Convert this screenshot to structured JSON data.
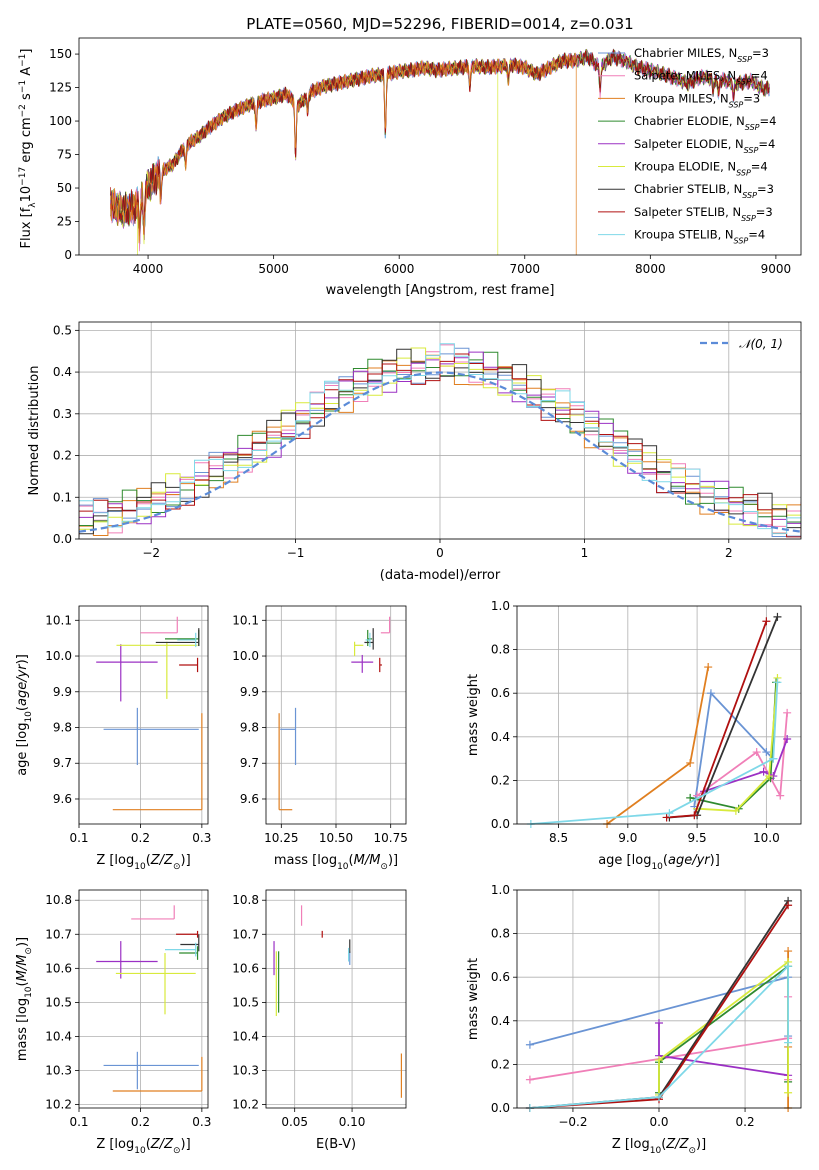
{
  "figure_title": "PLATE=0560, MJD=52296, FIBERID=0014, z=0.031",
  "series_colors": [
    "#6a94d4",
    "#f07fb8",
    "#e07f20",
    "#2f8a2f",
    "#9b30c4",
    "#d8ea3c",
    "#333333",
    "#b01010",
    "#7fd8e8"
  ],
  "chart_data": [
    {
      "id": "spectrum",
      "type": "line",
      "title": "PLATE=0560, MJD=52296, FIBERID=0014, z=0.031",
      "xlabel": "wavelength [Angstrom, rest frame]",
      "ylabel": "Flux [f",
      "xlim": [
        3450,
        9200
      ],
      "ylim": [
        0,
        162
      ],
      "xticks": [
        4000,
        5000,
        6000,
        7000,
        8000,
        9000
      ],
      "yticks": [
        0,
        25,
        50,
        75,
        100,
        125,
        150
      ],
      "legend_position": "right",
      "legend": [
        {
          "name": "Chabrier MILES, N",
          "nssp": "3"
        },
        {
          "name": "Salpeter MILES, N",
          "nssp": "4"
        },
        {
          "name": "Kroupa MILES, N",
          "nssp": "3"
        },
        {
          "name": "Chabrier ELODIE, N",
          "nssp": "4"
        },
        {
          "name": "Salpeter ELODIE, N",
          "nssp": "4"
        },
        {
          "name": "Kroupa ELODIE, N",
          "nssp": "4"
        },
        {
          "name": "Chabrier STELIB, N",
          "nssp": "3"
        },
        {
          "name": "Salpeter STELIB, N",
          "nssp": "3"
        },
        {
          "name": "Kroupa STELIB, N",
          "nssp": "4"
        }
      ],
      "continuum": [
        [
          3700,
          38
        ],
        [
          3800,
          33
        ],
        [
          3900,
          36
        ],
        [
          4000,
          52
        ],
        [
          4100,
          62
        ],
        [
          4200,
          68
        ],
        [
          4300,
          82
        ],
        [
          4400,
          88
        ],
        [
          4500,
          96
        ],
        [
          4600,
          103
        ],
        [
          4700,
          108
        ],
        [
          4800,
          112
        ],
        [
          4900,
          115
        ],
        [
          5000,
          117
        ],
        [
          5100,
          120
        ],
        [
          5200,
          112
        ],
        [
          5300,
          122
        ],
        [
          5400,
          126
        ],
        [
          5500,
          128
        ],
        [
          5600,
          130
        ],
        [
          5700,
          132
        ],
        [
          5800,
          134
        ],
        [
          5900,
          135
        ],
        [
          6000,
          137
        ],
        [
          6100,
          138
        ],
        [
          6200,
          140
        ],
        [
          6300,
          138
        ],
        [
          6400,
          139
        ],
        [
          6500,
          140
        ],
        [
          6600,
          141
        ],
        [
          6700,
          140
        ],
        [
          6800,
          141
        ],
        [
          6900,
          142
        ],
        [
          7000,
          140
        ],
        [
          7100,
          135
        ],
        [
          7200,
          140
        ],
        [
          7300,
          145
        ],
        [
          7400,
          145
        ],
        [
          7500,
          148
        ],
        [
          7600,
          140
        ],
        [
          7700,
          148
        ],
        [
          7800,
          145
        ],
        [
          7900,
          140
        ],
        [
          8000,
          138
        ],
        [
          8100,
          135
        ],
        [
          8200,
          132
        ],
        [
          8300,
          128
        ],
        [
          8400,
          133
        ],
        [
          8500,
          132
        ],
        [
          8600,
          130
        ],
        [
          8700,
          128
        ],
        [
          8800,
          130
        ],
        [
          8900,
          124
        ]
      ],
      "dips": [
        [
          3933,
          25
        ],
        [
          3968,
          28
        ],
        [
          4102,
          20
        ],
        [
          4300,
          15
        ],
        [
          4861,
          18
        ],
        [
          5175,
          40
        ],
        [
          5270,
          12
        ],
        [
          5890,
          45
        ],
        [
          6563,
          15
        ],
        [
          6870,
          12
        ],
        [
          7600,
          18
        ],
        [
          8500,
          10
        ],
        [
          8542,
          12
        ],
        [
          8662,
          12
        ]
      ],
      "dropouts": [
        {
          "series": 5,
          "at": 3915,
          "from_y": 28,
          "to_y": 0
        },
        {
          "series": 5,
          "at": 6785,
          "from_y": 140,
          "to_y": 0
        },
        {
          "series": 2,
          "at": 7410,
          "from_y": 145,
          "to_y": 0
        }
      ],
      "series_end_x": [
        8950,
        8950,
        7410,
        8950,
        8950,
        8950,
        8950,
        8950,
        8950
      ]
    },
    {
      "id": "residuals",
      "type": "histogram",
      "xlabel": "(data-model)/error",
      "ylabel": "Normed distribution",
      "xlim": [
        -2.5,
        2.5
      ],
      "ylim": [
        0,
        0.52
      ],
      "xticks": [
        -2,
        -1,
        0,
        1,
        2
      ],
      "yticks": [
        0.0,
        0.1,
        0.2,
        0.3,
        0.4,
        0.5
      ],
      "bin_width": 0.1,
      "legend": [
        {
          "name": "𝒩(0, 1)"
        }
      ],
      "legend_position": "top-right",
      "grid": true
    },
    {
      "id": "age_vs_Z",
      "type": "errorbar",
      "xlabel": "Z [log",
      "ylabel": "age  [log",
      "xlim": [
        0.1,
        0.31
      ],
      "ylim": [
        9.53,
        10.14
      ],
      "xticks": [
        0.1,
        0.2,
        0.3
      ],
      "yticks": [
        9.6,
        9.7,
        9.8,
        9.9,
        10.0,
        10.1
      ],
      "points": [
        {
          "x": 0.195,
          "xerr": [
            0.055,
            0.1
          ],
          "y": 9.795,
          "yerr": [
            0.1,
            0.06
          ]
        },
        {
          "x": 0.26,
          "xerr": [
            0.06,
            0.0
          ],
          "y": 10.065,
          "yerr": [
            0.0,
            0.045
          ]
        },
        {
          "x": 0.3,
          "xerr": [
            0.145,
            0.0
          ],
          "y": 9.57,
          "yerr": [
            0.0,
            0.27
          ]
        },
        {
          "x": 0.295,
          "xerr": [
            0.055,
            0.0
          ],
          "y": 10.048,
          "yerr": [
            0.02,
            0.025
          ]
        },
        {
          "x": 0.168,
          "xerr": [
            0.04,
            0.06
          ],
          "y": 9.983,
          "yerr": [
            0.11,
            0.05
          ]
        },
        {
          "x": 0.243,
          "xerr": [
            0.082,
            0.05
          ],
          "y": 10.03,
          "yerr": [
            0.15,
            0.01
          ]
        },
        {
          "x": 0.295,
          "xerr": [
            0.07,
            0.0
          ],
          "y": 10.038,
          "yerr": [
            0.01,
            0.04
          ]
        },
        {
          "x": 0.293,
          "xerr": [
            0.03,
            0.0
          ],
          "y": 9.975,
          "yerr": [
            0.02,
            0.02
          ]
        },
        {
          "x": 0.29,
          "xerr": [
            0.03,
            0.0
          ],
          "y": 10.045,
          "yerr": [
            0.02,
            0.02
          ]
        }
      ]
    },
    {
      "id": "age_vs_mass",
      "type": "errorbar",
      "xlabel": "mass [log",
      "xlim": [
        10.18,
        10.82
      ],
      "ylim": [
        9.53,
        10.14
      ],
      "xticks": [
        10.25,
        10.5,
        10.75
      ],
      "yticks": [
        9.6,
        9.7,
        9.8,
        9.9,
        10.0,
        10.1
      ],
      "points": [
        {
          "x": 10.315,
          "xerr": [
            0.07,
            0.0
          ],
          "y": 9.795,
          "yerr": [
            0.1,
            0.06
          ]
        },
        {
          "x": 10.745,
          "xerr": [
            0.04,
            0.0
          ],
          "y": 10.065,
          "yerr": [
            0.0,
            0.045
          ]
        },
        {
          "x": 10.24,
          "xerr": [
            0.0,
            0.06
          ],
          "y": 9.57,
          "yerr": [
            0.0,
            0.27
          ]
        },
        {
          "x": 10.645,
          "xerr": [
            0.0,
            0.02
          ],
          "y": 10.048,
          "yerr": [
            0.02,
            0.025
          ]
        },
        {
          "x": 10.62,
          "xerr": [
            0.05,
            0.05
          ],
          "y": 9.983,
          "yerr": [
            0.03,
            0.02
          ]
        },
        {
          "x": 10.585,
          "xerr": [
            0.0,
            0.04
          ],
          "y": 10.03,
          "yerr": [
            0.03,
            0.01
          ]
        },
        {
          "x": 10.67,
          "xerr": [
            0.04,
            0.0
          ],
          "y": 10.038,
          "yerr": [
            0.02,
            0.04
          ]
        },
        {
          "x": 10.7,
          "xerr": [
            0.0,
            0.01
          ],
          "y": 9.975,
          "yerr": [
            0.02,
            0.02
          ]
        },
        {
          "x": 10.655,
          "xerr": [
            0.02,
            0.0
          ],
          "y": 10.045,
          "yerr": [
            0.02,
            0.02
          ]
        }
      ]
    },
    {
      "id": "weight_vs_age",
      "type": "line",
      "xlabel": "age  [log",
      "ylabel": "mass weight",
      "xlim": [
        8.2,
        10.25
      ],
      "ylim": [
        0,
        1.0
      ],
      "xticks": [
        8.5,
        9.0,
        9.5,
        10.0
      ],
      "yticks": [
        0.0,
        0.2,
        0.4,
        0.6,
        0.8,
        1.0
      ],
      "series": [
        {
          "x": [
            9.48,
            9.6,
            10.0,
            10.05
          ],
          "y": [
            0.08,
            0.6,
            0.33,
            0.3
          ]
        },
        {
          "x": [
            9.5,
            9.93,
            10.1,
            10.15
          ],
          "y": [
            0.13,
            0.33,
            0.13,
            0.51
          ]
        },
        {
          "x": [
            8.85,
            9.45,
            9.58
          ],
          "y": [
            0.0,
            0.28,
            0.72
          ]
        },
        {
          "x": [
            9.45,
            9.8,
            10.03,
            10.07
          ],
          "y": [
            0.12,
            0.07,
            0.21,
            0.65
          ]
        },
        {
          "x": [
            9.55,
            9.98,
            10.05,
            10.15
          ],
          "y": [
            0.15,
            0.24,
            0.22,
            0.39
          ]
        },
        {
          "x": [
            9.5,
            9.78,
            10.02,
            10.08
          ],
          "y": [
            0.07,
            0.06,
            0.22,
            0.67
          ]
        },
        {
          "x": [
            9.3,
            9.5,
            10.08
          ],
          "y": [
            0.03,
            0.04,
            0.95
          ]
        },
        {
          "x": [
            9.28,
            9.48,
            10.0
          ],
          "y": [
            0.03,
            0.04,
            0.93
          ]
        },
        {
          "x": [
            8.3,
            9.3,
            10.05,
            10.08
          ],
          "y": [
            0.0,
            0.05,
            0.3,
            0.65
          ]
        }
      ]
    },
    {
      "id": "mass_vs_Z",
      "type": "errorbar",
      "xlabel": "Z [log",
      "ylabel": "mass [log",
      "xlim": [
        0.1,
        0.31
      ],
      "ylim": [
        10.19,
        10.83
      ],
      "xticks": [
        0.1,
        0.2,
        0.3
      ],
      "yticks": [
        10.2,
        10.3,
        10.4,
        10.5,
        10.6,
        10.7,
        10.8
      ],
      "points": [
        {
          "x": 0.195,
          "xerr": [
            0.055,
            0.1
          ],
          "y": 10.315,
          "yerr": [
            0.07,
            0.04
          ]
        },
        {
          "x": 0.255,
          "xerr": [
            0.07,
            0.0
          ],
          "y": 10.745,
          "yerr": [
            0.0,
            0.04
          ]
        },
        {
          "x": 0.3,
          "xerr": [
            0.145,
            0.0
          ],
          "y": 10.24,
          "yerr": [
            0.0,
            0.1
          ]
        },
        {
          "x": 0.293,
          "xerr": [
            0.03,
            0.0
          ],
          "y": 10.645,
          "yerr": [
            0.02,
            0.02
          ]
        },
        {
          "x": 0.168,
          "xerr": [
            0.04,
            0.06
          ],
          "y": 10.62,
          "yerr": [
            0.05,
            0.06
          ]
        },
        {
          "x": 0.24,
          "xerr": [
            0.08,
            0.05
          ],
          "y": 10.585,
          "yerr": [
            0.12,
            0.06
          ]
        },
        {
          "x": 0.295,
          "xerr": [
            0.03,
            0.0
          ],
          "y": 10.67,
          "yerr": [
            0.02,
            0.03
          ]
        },
        {
          "x": 0.293,
          "xerr": [
            0.035,
            0.0
          ],
          "y": 10.7,
          "yerr": [
            0.01,
            0.01
          ]
        },
        {
          "x": 0.29,
          "xerr": [
            0.05,
            0.0
          ],
          "y": 10.655,
          "yerr": [
            0.02,
            0.02
          ]
        }
      ]
    },
    {
      "id": "mass_vs_ebv",
      "type": "errorbar",
      "xlabel": "E(B-V)",
      "xlim": [
        0.025,
        0.147
      ],
      "ylim": [
        10.19,
        10.83
      ],
      "xticks": [
        0.05,
        0.1
      ],
      "yticks": [
        10.2,
        10.3,
        10.4,
        10.5,
        10.6,
        10.7,
        10.8
      ],
      "points": [
        {
          "x": 0.098,
          "y": 10.63,
          "yerr": [
            0.02,
            0.02
          ]
        },
        {
          "x": 0.056,
          "y": 10.755,
          "yerr": [
            0.03,
            0.03
          ]
        },
        {
          "x": 0.143,
          "y": 10.28,
          "yerr": [
            0.06,
            0.07
          ]
        },
        {
          "x": 0.036,
          "y": 10.57,
          "yerr": [
            0.1,
            0.08
          ]
        },
        {
          "x": 0.032,
          "y": 10.63,
          "yerr": [
            0.05,
            0.05
          ]
        },
        {
          "x": 0.034,
          "y": 10.55,
          "yerr": [
            0.09,
            0.1
          ]
        },
        {
          "x": 0.098,
          "y": 10.665,
          "yerr": [
            0.02,
            0.02
          ]
        },
        {
          "x": 0.074,
          "y": 10.7,
          "yerr": [
            0.01,
            0.01
          ]
        },
        {
          "x": 0.097,
          "y": 10.64,
          "yerr": [
            0.02,
            0.02
          ]
        }
      ]
    },
    {
      "id": "weight_vs_Z",
      "type": "line",
      "xlabel": "Z [log",
      "ylabel": "mass weight",
      "xlim": [
        -0.33,
        0.33
      ],
      "ylim": [
        0,
        1.0
      ],
      "xticks": [
        -0.2,
        0.0,
        0.2
      ],
      "yticks": [
        0.0,
        0.2,
        0.4,
        0.6,
        0.8,
        1.0
      ],
      "series": [
        {
          "x": [
            -0.3,
            0.3,
            0.3
          ],
          "y": [
            0.29,
            0.6,
            0.33
          ]
        },
        {
          "x": [
            -0.3,
            0.3,
            0.3,
            0.3
          ],
          "y": [
            0.13,
            0.32,
            0.51,
            0.13
          ]
        },
        {
          "x": [
            0.3,
            0.3,
            0.3
          ],
          "y": [
            0.72,
            0.28,
            0.0
          ]
        },
        {
          "x": [
            0.0,
            0.0,
            0.3,
            0.3
          ],
          "y": [
            0.07,
            0.21,
            0.65,
            0.12
          ]
        },
        {
          "x": [
            0.0,
            0.0,
            0.3
          ],
          "y": [
            0.39,
            0.24,
            0.15
          ]
        },
        {
          "x": [
            0.0,
            0.0,
            0.3,
            0.3
          ],
          "y": [
            0.06,
            0.22,
            0.67,
            0.07
          ]
        },
        {
          "x": [
            -0.3,
            0.0,
            0.3
          ],
          "y": [
            0.0,
            0.05,
            0.95
          ]
        },
        {
          "x": [
            -0.3,
            0.0,
            0.3
          ],
          "y": [
            0.0,
            0.04,
            0.93
          ]
        },
        {
          "x": [
            -0.3,
            0.0,
            0.3,
            0.3
          ],
          "y": [
            0.0,
            0.05,
            0.65,
            0.3
          ]
        }
      ]
    }
  ]
}
